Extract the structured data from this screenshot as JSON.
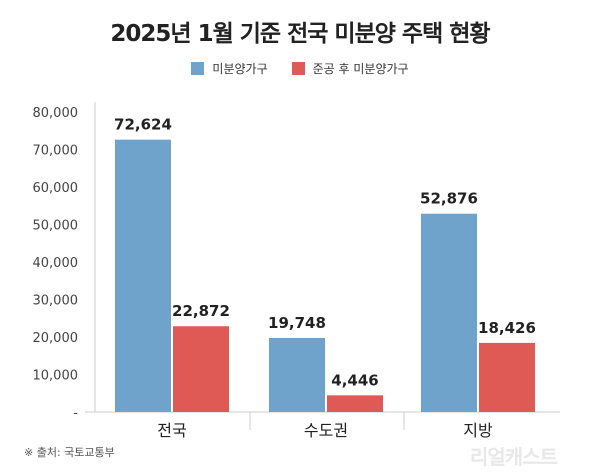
{
  "chart_data": {
    "type": "bar",
    "title": "2025년 1월 기준 전국 미분양 주택 현황",
    "categories": [
      "전국",
      "수도권",
      "지방"
    ],
    "series": [
      {
        "name": "미분양가구",
        "color": "#6fa3cc",
        "values": [
          72624,
          19748,
          52876
        ],
        "labels": [
          "72,624",
          "19,748",
          "52,876"
        ]
      },
      {
        "name": "준공 후 미분양가구",
        "color": "#df5a55",
        "values": [
          22872,
          4446,
          18426
        ],
        "labels": [
          "22,872",
          "4,446",
          "18,426"
        ]
      }
    ],
    "ylim": [
      0,
      80000
    ],
    "yticks": [
      0,
      10000,
      20000,
      30000,
      40000,
      50000,
      60000,
      70000,
      80000
    ],
    "ytick_labels": [
      "-",
      "10,000",
      "20,000",
      "30,000",
      "40,000",
      "50,000",
      "60,000",
      "70,000",
      "80,000"
    ],
    "xlabel": "",
    "ylabel": "",
    "legend": "top-center",
    "grid": false
  },
  "source": "※ 출처: 국토교통부",
  "watermark": "리얼캐스트"
}
